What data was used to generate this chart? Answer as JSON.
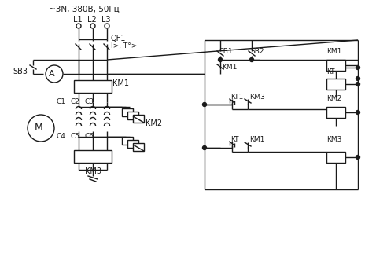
{
  "bg_color": "#ffffff",
  "lc": "#1a1a1a",
  "lw": 1.0,
  "fig_w": 4.78,
  "fig_h": 3.46,
  "dpi": 100,
  "labels": {
    "header": "~3N, 380В, 50Гц",
    "L1": "L1",
    "L2": "L2",
    "L3": "L3",
    "QF1": "QF1",
    "QF1b": "I>, T°>",
    "SB3": "SB3",
    "A": "A",
    "M": "M",
    "KM1_power": "KM1",
    "KM2_power": "KM2",
    "KM3_power": "KM3",
    "C1": "C1",
    "C2": "C2",
    "C3": "C3",
    "C4": "C4",
    "C5": "C5",
    "C6": "C6",
    "SB1": "SB1",
    "SB2": "SB2",
    "KM1_ctrl": "KM1",
    "KT_ctrl": "KT",
    "KT1_lbl": "KT1",
    "KM3_lbl": "КМ3",
    "KM2_ctrl": "KM2",
    "KT_lbl2": "KT",
    "KM1_lbl2": "KM1",
    "KM3_ctrl": "KM3"
  }
}
